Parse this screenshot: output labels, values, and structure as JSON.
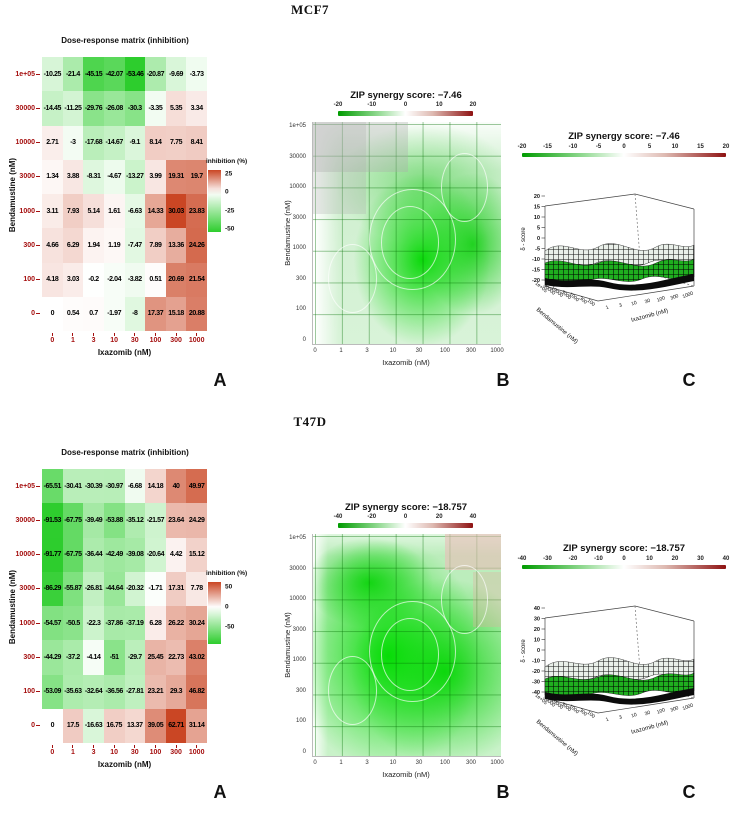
{
  "panels": [
    {
      "cell_line": "MCF7",
      "letters": [
        "A",
        "B",
        "C"
      ],
      "heatmap": {
        "title": "Dose-response matrix (inhibition)",
        "xlabel": "Ixazomib (nM)",
        "ylabel": "Bendamustine (nM)",
        "legend_title": "inhibition (%)",
        "legend_ticks": [
          25,
          0,
          -25,
          -50
        ],
        "rows": [
          "1e+05",
          "30000",
          "10000",
          "3000",
          "1000",
          "300",
          "100",
          "0"
        ],
        "cols": [
          "0",
          "1",
          "3",
          "10",
          "30",
          "100",
          "300",
          "1000"
        ],
        "values": [
          [
            "-10.25",
            "-21.4",
            "-45.15",
            "-42.07",
            "-53.46",
            "-20.87",
            "-9.69",
            "-3.73"
          ],
          [
            "-14.45",
            "-11.25",
            "-29.76",
            "-26.08",
            "-30.3",
            "-3.35",
            "5.35",
            "3.34"
          ],
          [
            "2.71",
            "-3",
            "-17.68",
            "-14.67",
            "-9.1",
            "8.14",
            "7.75",
            "8.41"
          ],
          [
            "1.34",
            "3.88",
            "-8.31",
            "-4.67",
            "-13.27",
            "3.99",
            "19.31",
            "19.7"
          ],
          [
            "3.11",
            "7.93",
            "5.14",
            "1.61",
            "-6.63",
            "14.33",
            "30.03",
            "23.83"
          ],
          [
            "4.66",
            "6.29",
            "1.94",
            "1.19",
            "-7.47",
            "7.89",
            "13.36",
            "24.26"
          ],
          [
            "4.18",
            "3.03",
            "-0.2",
            "-2.04",
            "-3.82",
            "0.51",
            "20.69",
            "21.54"
          ],
          [
            "0",
            "0.54",
            "0.7",
            "-1.97",
            "-8",
            "17.37",
            "15.18",
            "20.88"
          ]
        ]
      },
      "contour": {
        "title": "ZIP synergy score: −7.46",
        "colorbar_ticks": [
          "-20",
          "-10",
          "0",
          "10",
          "20"
        ],
        "xlabel": "Ixazomib (nM)",
        "ylabel": "Bendamustine (nM)",
        "x_ticks": [
          "0",
          "1",
          "3",
          "10",
          "30",
          "100",
          "300",
          "1000"
        ],
        "y_ticks": [
          "1e+05",
          "30000",
          "10000",
          "3000",
          "1000",
          "300",
          "100",
          "0"
        ]
      },
      "surface": {
        "title": "ZIP synergy score: −7.46",
        "colorbar_ticks": [
          "-20",
          "-15",
          "-10",
          "-5",
          "0",
          "5",
          "10",
          "15",
          "20"
        ],
        "z_ticks": [
          "20",
          "15",
          "10",
          "5",
          "0",
          "-5",
          "-10",
          "-15",
          "-20"
        ],
        "z_label": "δ - score",
        "x_label": "Ixazomib (nM)",
        "x_ticks": [
          "1",
          "3",
          "10",
          "30",
          "100",
          "300",
          "1000"
        ],
        "y_label": "Bendamustine (nM)",
        "y_ticks": [
          "1e+05",
          "30000",
          "10000",
          "3000",
          "1000",
          "300",
          "100"
        ]
      }
    },
    {
      "cell_line": "T47D",
      "letters": [
        "A",
        "B",
        "C"
      ],
      "heatmap": {
        "title": "Dose-response matrix (inhibition)",
        "xlabel": "Ixazomib (nM)",
        "ylabel": "Bendamustine (nM)",
        "legend_title": "inhibition (%)",
        "legend_ticks": [
          50,
          0,
          -50
        ],
        "rows": [
          "1e+05",
          "30000",
          "10000",
          "3000",
          "1000",
          "300",
          "100",
          "0"
        ],
        "cols": [
          "0",
          "1",
          "3",
          "10",
          "30",
          "100",
          "300",
          "1000"
        ],
        "values": [
          [
            "-65.51",
            "-30.41",
            "-30.39",
            "-30.97",
            "-6.68",
            "14.18",
            "40",
            "49.97"
          ],
          [
            "-91.53",
            "-67.75",
            "-39.49",
            "-53.88",
            "-35.12",
            "-21.57",
            "23.64",
            "24.29"
          ],
          [
            "-91.77",
            "-67.75",
            "-36.44",
            "-42.49",
            "-39.08",
            "-20.64",
            "4.42",
            "15.12"
          ],
          [
            "-86.29",
            "-55.87",
            "-26.81",
            "-44.64",
            "-20.32",
            "-1.71",
            "17.31",
            "7.78"
          ],
          [
            "-54.57",
            "-50.5",
            "-22.3",
            "-37.86",
            "-37.19",
            "6.28",
            "26.22",
            "30.24"
          ],
          [
            "-44.29",
            "-37.2",
            "-4.14",
            "-51",
            "-29.7",
            "25.45",
            "22.73",
            "43.02"
          ],
          [
            "-53.09",
            "-35.63",
            "-32.64",
            "-36.56",
            "-27.81",
            "23.21",
            "29.3",
            "46.82"
          ],
          [
            "0",
            "17.5",
            "-16.63",
            "16.75",
            "13.37",
            "39.05",
            "62.71",
            "31.14"
          ]
        ]
      },
      "contour": {
        "title": "ZIP synergy score: −18.757",
        "colorbar_ticks": [
          "-40",
          "-20",
          "0",
          "20",
          "40"
        ],
        "xlabel": "Ixazomib (nM)",
        "ylabel": "Bendamustine (nM)",
        "x_ticks": [
          "0",
          "1",
          "3",
          "10",
          "30",
          "100",
          "300",
          "1000"
        ],
        "y_ticks": [
          "1e+05",
          "30000",
          "10000",
          "3000",
          "1000",
          "300",
          "100",
          "0"
        ]
      },
      "surface": {
        "title": "ZIP synergy score: −18.757",
        "colorbar_ticks": [
          "-40",
          "-30",
          "-20",
          "-10",
          "0",
          "10",
          "20",
          "30",
          "40"
        ],
        "z_ticks": [
          "40",
          "30",
          "20",
          "10",
          "0",
          "-10",
          "-20",
          "-30",
          "-40"
        ],
        "z_label": "δ - score",
        "x_label": "Ixazomib (nM)",
        "x_ticks": [
          "1",
          "3",
          "10",
          "30",
          "100",
          "300",
          "1000"
        ],
        "y_label": "Bendamustine (nM)",
        "y_ticks": [
          "1e+05",
          "30000",
          "10000",
          "3000",
          "1000",
          "300",
          "100"
        ]
      }
    }
  ],
  "chart_data": [
    {
      "type": "heatmap",
      "cell_line": "MCF7",
      "title": "Dose-response matrix (inhibition)",
      "xlabel": "Ixazomib (nM)",
      "ylabel": "Bendamustine (nM)",
      "x_categories": [
        0,
        1,
        3,
        10,
        30,
        100,
        300,
        1000
      ],
      "y_categories": [
        100000,
        30000,
        10000,
        3000,
        1000,
        300,
        100,
        0
      ],
      "values": [
        [
          -10.25,
          -21.4,
          -45.15,
          -42.07,
          -53.46,
          -20.87,
          -9.69,
          -3.73
        ],
        [
          -14.45,
          -11.25,
          -29.76,
          -26.08,
          -30.3,
          -3.35,
          5.35,
          3.34
        ],
        [
          2.71,
          -3,
          -17.68,
          -14.67,
          -9.1,
          8.14,
          7.75,
          8.41
        ],
        [
          1.34,
          3.88,
          -8.31,
          -4.67,
          -13.27,
          3.99,
          19.31,
          19.7
        ],
        [
          3.11,
          7.93,
          5.14,
          1.61,
          -6.63,
          14.33,
          30.03,
          23.83
        ],
        [
          4.66,
          6.29,
          1.94,
          1.19,
          -7.47,
          7.89,
          13.36,
          24.26
        ],
        [
          4.18,
          3.03,
          -0.2,
          -2.04,
          -3.82,
          0.51,
          20.69,
          21.54
        ],
        [
          0,
          0.54,
          0.7,
          -1.97,
          -8,
          17.37,
          15.18,
          20.88
        ]
      ],
      "colorbar": {
        "label": "inhibition (%)",
        "ticks": [
          25,
          0,
          -25,
          -50
        ]
      }
    },
    {
      "type": "heatmap",
      "subtype": "contour-synergy-landscape",
      "cell_line": "MCF7",
      "title": "ZIP synergy score: −7.46",
      "zip_synergy_score": -7.46,
      "xlabel": "Ixazomib (nM)",
      "ylabel": "Bendamustine (nM)",
      "x_categories": [
        0,
        1,
        3,
        10,
        30,
        100,
        300,
        1000
      ],
      "y_categories": [
        100000,
        30000,
        10000,
        3000,
        1000,
        300,
        100,
        0
      ],
      "colorbar_ticks": [
        -20,
        -10,
        0,
        10,
        20
      ]
    },
    {
      "type": "surface",
      "cell_line": "MCF7",
      "title": "ZIP synergy score: −7.46",
      "zip_synergy_score": -7.46,
      "zlabel": "δ - score",
      "xlabel": "Ixazomib (nM)",
      "ylabel": "Bendamustine (nM)",
      "z_ticks": [
        20,
        15,
        10,
        5,
        0,
        -5,
        -10,
        -15,
        -20
      ],
      "colorbar_ticks": [
        -20,
        -15,
        -10,
        -5,
        0,
        5,
        10,
        15,
        20
      ]
    },
    {
      "type": "heatmap",
      "cell_line": "T47D",
      "title": "Dose-response matrix (inhibition)",
      "xlabel": "Ixazomib (nM)",
      "ylabel": "Bendamustine (nM)",
      "x_categories": [
        0,
        1,
        3,
        10,
        30,
        100,
        300,
        1000
      ],
      "y_categories": [
        100000,
        30000,
        10000,
        3000,
        1000,
        300,
        100,
        0
      ],
      "values": [
        [
          -65.51,
          -30.41,
          -30.39,
          -30.97,
          -6.68,
          14.18,
          40,
          49.97
        ],
        [
          -91.53,
          -67.75,
          -39.49,
          -53.88,
          -35.12,
          -21.57,
          23.64,
          24.29
        ],
        [
          -91.77,
          -67.75,
          -36.44,
          -42.49,
          -39.08,
          -20.64,
          4.42,
          15.12
        ],
        [
          -86.29,
          -55.87,
          -26.81,
          -44.64,
          -20.32,
          -1.71,
          17.31,
          7.78
        ],
        [
          -54.57,
          -50.5,
          -22.3,
          -37.86,
          -37.19,
          6.28,
          26.22,
          30.24
        ],
        [
          -44.29,
          -37.2,
          -4.14,
          -51,
          -29.7,
          25.45,
          22.73,
          43.02
        ],
        [
          -53.09,
          -35.63,
          -32.64,
          -36.56,
          -27.81,
          23.21,
          29.3,
          46.82
        ],
        [
          0,
          17.5,
          -16.63,
          16.75,
          13.37,
          39.05,
          62.71,
          31.14
        ]
      ],
      "colorbar": {
        "label": "inhibition (%)",
        "ticks": [
          50,
          0,
          -50
        ]
      }
    },
    {
      "type": "heatmap",
      "subtype": "contour-synergy-landscape",
      "cell_line": "T47D",
      "title": "ZIP synergy score: −18.757",
      "zip_synergy_score": -18.757,
      "xlabel": "Ixazomib (nM)",
      "ylabel": "Bendamustine (nM)",
      "x_categories": [
        0,
        1,
        3,
        10,
        30,
        100,
        300,
        1000
      ],
      "y_categories": [
        100000,
        30000,
        10000,
        3000,
        1000,
        300,
        100,
        0
      ],
      "colorbar_ticks": [
        -40,
        -20,
        0,
        20,
        40
      ]
    },
    {
      "type": "surface",
      "cell_line": "T47D",
      "title": "ZIP synergy score: −18.757",
      "zip_synergy_score": -18.757,
      "zlabel": "δ - score",
      "xlabel": "Ixazomib (nM)",
      "ylabel": "Bendamustine (nM)",
      "z_ticks": [
        40,
        30,
        20,
        10,
        0,
        -10,
        -20,
        -30,
        -40
      ],
      "colorbar_ticks": [
        -40,
        -30,
        -20,
        -10,
        0,
        10,
        20,
        30,
        40
      ]
    }
  ]
}
